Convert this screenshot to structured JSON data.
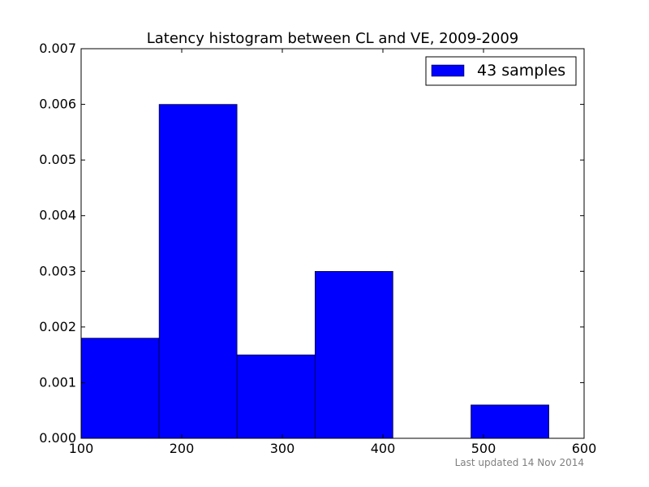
{
  "chart_data": {
    "type": "bar",
    "title": "Latency histogram between CL and VE, 2009-2009",
    "xlabel": "",
    "ylabel": "",
    "xlim": [
      100,
      600
    ],
    "ylim": [
      0,
      0.007
    ],
    "xticks": [
      "100",
      "200",
      "300",
      "400",
      "500",
      "600"
    ],
    "yticks": [
      "0.000",
      "0.001",
      "0.002",
      "0.003",
      "0.004",
      "0.005",
      "0.006",
      "0.007"
    ],
    "grid": false,
    "legend_position": "top-right",
    "bins": [
      {
        "start": 100,
        "end": 177.5,
        "density": 0.0018
      },
      {
        "start": 177.5,
        "end": 255,
        "density": 0.006
      },
      {
        "start": 255,
        "end": 332.5,
        "density": 0.0015
      },
      {
        "start": 332.5,
        "end": 410,
        "density": 0.003
      },
      {
        "start": 410,
        "end": 487.5,
        "density": 0
      },
      {
        "start": 487.5,
        "end": 565,
        "density": 0.0006
      }
    ],
    "series": [
      {
        "name": "43 samples",
        "color": "#0000ff"
      }
    ]
  },
  "footer": {
    "updated": "Last updated 14 Nov 2014"
  }
}
